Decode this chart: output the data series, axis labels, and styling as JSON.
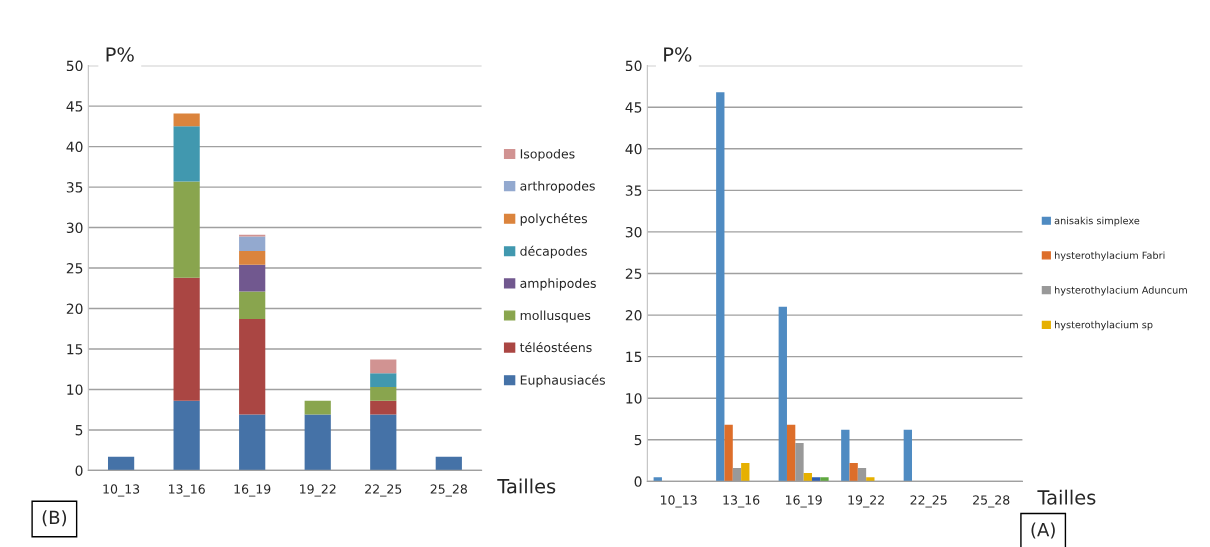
{
  "chart_data": [
    {
      "type": "bar",
      "stacked": true,
      "ylabel": "P%",
      "xlabel": "Tailles",
      "categories": [
        "10_13",
        "13_16",
        "16_19",
        "19_22",
        "22_25",
        "25_28"
      ],
      "ylim": [
        0,
        50
      ],
      "yticks": [
        0,
        5,
        10,
        15,
        20,
        25,
        30,
        35,
        40,
        45,
        50
      ],
      "grid": "y",
      "legend": "right",
      "annotations": [
        "(B)"
      ],
      "series": [
        {
          "name": "Euphausiacés",
          "color": "#4572a7",
          "values": [
            1.7,
            8.6,
            6.9,
            6.9,
            6.9,
            1.7
          ]
        },
        {
          "name": "téléostéens",
          "color": "#aa4643",
          "values": [
            0,
            15.2,
            11.8,
            0,
            1.7,
            0
          ]
        },
        {
          "name": "mollusques",
          "color": "#89a54e",
          "values": [
            0,
            11.9,
            3.4,
            1.7,
            1.7,
            0
          ]
        },
        {
          "name": "amphipodes",
          "color": "#71588f",
          "values": [
            0,
            0,
            3.3,
            0,
            0,
            0
          ]
        },
        {
          "name": "décapodes",
          "color": "#4198af",
          "values": [
            0,
            6.8,
            0,
            0,
            1.7,
            0
          ]
        },
        {
          "name": "polychétes",
          "color": "#db843d",
          "values": [
            0,
            1.6,
            1.7,
            0,
            0,
            0
          ]
        },
        {
          "name": "arthropodes",
          "color": "#93a9cf",
          "values": [
            0,
            0,
            1.8,
            0,
            0,
            0
          ]
        },
        {
          "name": "Isopodes",
          "color": "#d19392",
          "values": [
            0,
            0,
            0.2,
            0,
            1.7,
            0
          ]
        }
      ]
    },
    {
      "type": "bar",
      "ylabel": "P%",
      "xlabel": "Tailles",
      "categories": [
        "10_13",
        "13_16",
        "16_19",
        "19_22",
        "22_25",
        "25_28"
      ],
      "ylim": [
        0,
        50
      ],
      "yticks": [
        0,
        5,
        10,
        15,
        20,
        25,
        30,
        35,
        40,
        45,
        50
      ],
      "grid": "y",
      "legend": "right",
      "annotations": [
        "(A)"
      ],
      "series": [
        {
          "name": "anisakis simplexe",
          "color": "#4f8bc2",
          "values": [
            0.5,
            46.8,
            21,
            6.2,
            6.2,
            0
          ]
        },
        {
          "name": "hysterothylacium Fabri",
          "color": "#dd6e2a",
          "values": [
            0,
            6.8,
            6.8,
            2.2,
            0,
            0
          ]
        },
        {
          "name": "hysterothylacium Aduncum",
          "color": "#999999",
          "values": [
            0,
            1.6,
            4.6,
            1.6,
            0,
            0
          ]
        },
        {
          "name": "hysterothylacium sp",
          "color": "#e6b000",
          "values": [
            0,
            2.2,
            1,
            0.5,
            0,
            0
          ]
        },
        {
          "color": "#2f5fb3",
          "values": [
            0,
            0,
            0.5,
            0,
            0,
            0
          ]
        },
        {
          "color": "#5fa83f",
          "values": [
            0,
            0,
            0.5,
            0,
            0,
            0
          ]
        }
      ]
    }
  ]
}
